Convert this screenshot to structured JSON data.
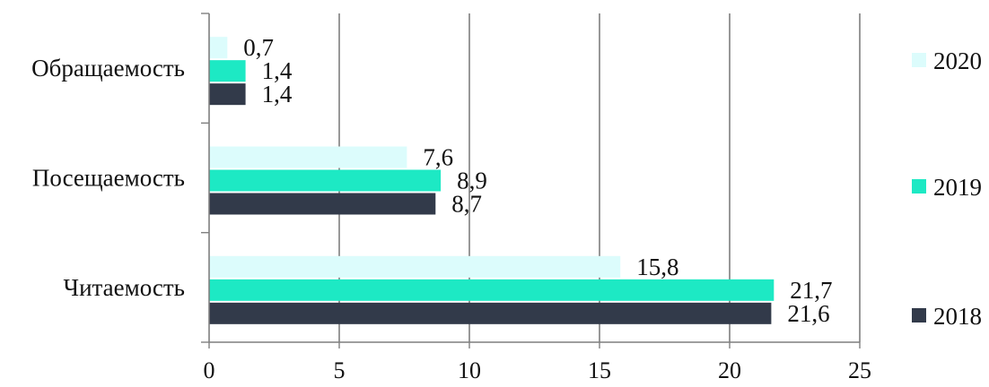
{
  "chart_data": {
    "type": "bar",
    "orientation": "horizontal",
    "categories": [
      "Обращаемость",
      "Посещаемость",
      "Читаемость"
    ],
    "series": [
      {
        "name": "2020",
        "values": [
          0.7,
          7.6,
          15.8
        ],
        "labels": [
          "0,7",
          "7,6",
          "15,8"
        ],
        "color": "#dcfcfc"
      },
      {
        "name": "2019",
        "values": [
          1.4,
          8.9,
          21.7
        ],
        "labels": [
          "1,4",
          "8,9",
          "21,7"
        ],
        "color": "#1de9c4"
      },
      {
        "name": "2018",
        "values": [
          1.4,
          8.7,
          21.6
        ],
        "labels": [
          "1,4",
          "8,7",
          "21,6"
        ],
        "color": "#323a4a"
      }
    ],
    "xlim": [
      0,
      25
    ],
    "xticks": [
      0,
      5,
      10,
      15,
      20,
      25
    ],
    "xtick_labels": [
      "0",
      "5",
      "10",
      "15",
      "20",
      "25"
    ],
    "grid": "vertical",
    "legend": "right",
    "title": "",
    "xlabel": "",
    "ylabel": ""
  }
}
